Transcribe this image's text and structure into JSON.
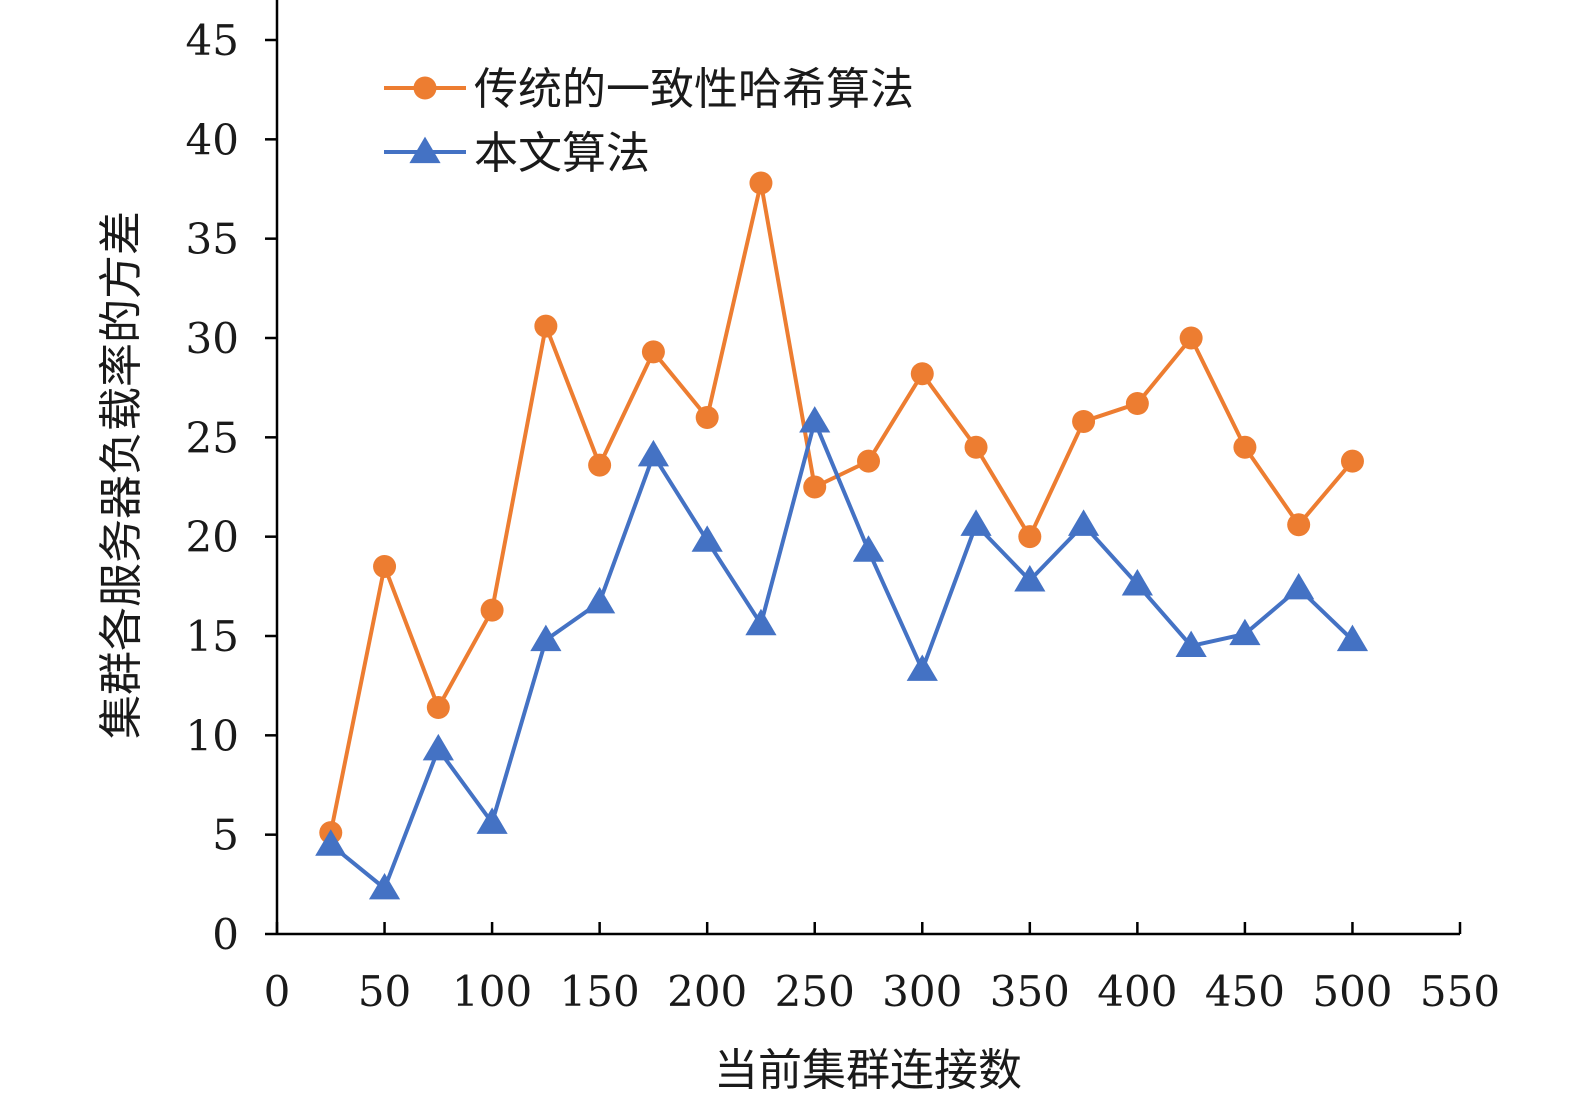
{
  "chart_data": {
    "type": "line",
    "title": "",
    "xlabel": "当前集群连接数",
    "ylabel": "集群各服务器负载率的方差",
    "xlim": [
      0,
      550
    ],
    "ylim": [
      0,
      45
    ],
    "x_ticks": [
      0,
      50,
      100,
      150,
      200,
      250,
      300,
      350,
      400,
      450,
      500,
      550
    ],
    "y_ticks": [
      0,
      5,
      10,
      15,
      20,
      25,
      30,
      35,
      40,
      45
    ],
    "grid": false,
    "legend_position": "top-left",
    "x": [
      25,
      50,
      75,
      100,
      125,
      150,
      175,
      200,
      225,
      250,
      275,
      300,
      325,
      350,
      375,
      400,
      425,
      450,
      475,
      500
    ],
    "series": [
      {
        "name": "传统的一致性哈希算法",
        "color": "#ed7d31",
        "marker": "circle",
        "values": [
          5.1,
          18.5,
          11.4,
          16.3,
          30.6,
          23.6,
          29.3,
          26.0,
          37.8,
          22.5,
          23.8,
          28.2,
          24.5,
          20.0,
          25.8,
          26.7,
          30.0,
          24.5,
          20.6,
          23.8
        ]
      },
      {
        "name": "本文算法",
        "color": "#4472c4",
        "marker": "triangle",
        "values": [
          4.5,
          2.3,
          9.3,
          5.6,
          14.8,
          16.7,
          24.1,
          19.8,
          15.6,
          25.8,
          19.3,
          13.3,
          20.6,
          17.8,
          20.6,
          17.6,
          14.5,
          15.1,
          17.4,
          14.8
        ]
      }
    ]
  }
}
